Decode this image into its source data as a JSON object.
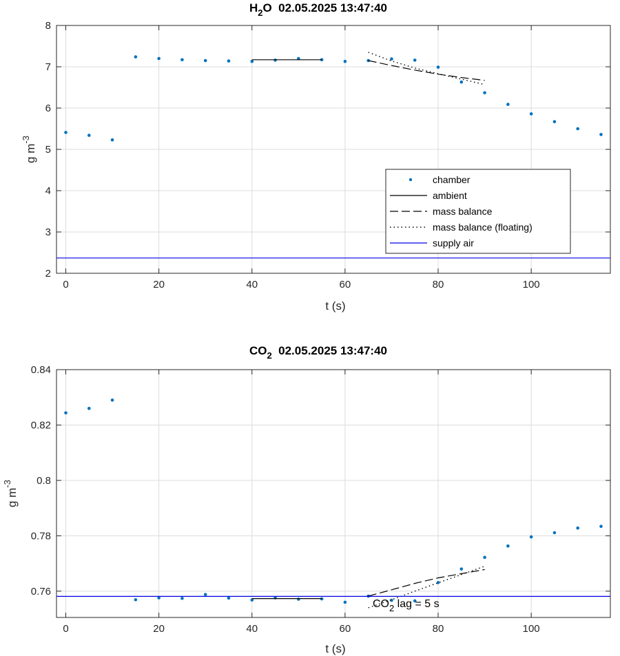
{
  "colors": {
    "chamber": "#0072BD",
    "ambient": "#000000",
    "mass_balance": "#000000",
    "mass_balance_floating": "#000000",
    "supply_air": "#0000E6",
    "grid": "#dcdcdc"
  },
  "chart_data": [
    {
      "type": "scatter",
      "title_main": "H",
      "title_sub": "2",
      "title_rest": "O  02.05.2025 13:47:40",
      "xlabel": "t (s)",
      "ylabel_main": "g m",
      "ylabel_sup": "-3",
      "xlim": [
        -2,
        117
      ],
      "ylim": [
        2,
        8
      ],
      "xticks": [
        0,
        20,
        40,
        60,
        80,
        100
      ],
      "xtick_labels": [
        "0",
        "20",
        "40",
        "60",
        "80",
        "100"
      ],
      "yticks": [
        2,
        3,
        4,
        5,
        6,
        7,
        8
      ],
      "ytick_labels": [
        "2",
        "3",
        "4",
        "5",
        "6",
        "7",
        "8"
      ],
      "grid": true,
      "legend_position": "lower-right",
      "legend": [
        "chamber",
        "ambient",
        "mass balance",
        "mass balance (floating)",
        "supply air"
      ],
      "series": [
        {
          "name": "chamber",
          "style": "dots",
          "x": [
            0,
            5,
            10,
            15,
            20,
            25,
            30,
            35,
            40,
            45,
            50,
            55,
            60,
            65,
            70,
            75,
            80,
            85,
            90,
            95,
            100,
            105,
            110,
            115
          ],
          "y": [
            5.41,
            5.34,
            5.23,
            7.24,
            7.2,
            7.17,
            7.15,
            7.14,
            7.13,
            7.16,
            7.2,
            7.17,
            7.13,
            7.15,
            7.19,
            7.16,
            6.99,
            6.63,
            6.37,
            6.09,
            5.86,
            5.67,
            5.5,
            5.36
          ]
        },
        {
          "name": "ambient",
          "style": "solid",
          "x": [
            40,
            55
          ],
          "y": [
            7.17,
            7.17
          ]
        },
        {
          "name": "mass balance",
          "style": "dashed",
          "x": [
            65,
            70,
            75,
            80,
            85,
            90
          ],
          "y": [
            7.15,
            7.03,
            6.92,
            6.82,
            6.74,
            6.67
          ]
        },
        {
          "name": "mass balance (floating)",
          "style": "dotted",
          "x": [
            65,
            70,
            75,
            80,
            85,
            90
          ],
          "y": [
            7.35,
            7.14,
            6.97,
            6.83,
            6.7,
            6.57
          ]
        },
        {
          "name": "supply air",
          "style": "solid-blue",
          "x": [
            -2,
            117
          ],
          "y": [
            2.37,
            2.37
          ]
        }
      ]
    },
    {
      "type": "scatter",
      "title_main": "CO",
      "title_sub": "2",
      "title_rest": "  02.05.2025 13:47:40",
      "xlabel": "t (s)",
      "ylabel_main": "g m",
      "ylabel_sup": "-3",
      "xlim": [
        -2,
        117
      ],
      "ylim": [
        0.7505,
        0.84
      ],
      "xticks": [
        0,
        20,
        40,
        60,
        80,
        100
      ],
      "xtick_labels": [
        "0",
        "20",
        "40",
        "60",
        "80",
        "100"
      ],
      "yticks": [
        0.76,
        0.78,
        0.8,
        0.82,
        0.84
      ],
      "ytick_labels": [
        "0.76",
        "0.78",
        "0.8",
        "0.82",
        "0.84"
      ],
      "grid": true,
      "annotation": {
        "main": "CO",
        "sub": "2",
        "rest": " lag = 5 s"
      },
      "series": [
        {
          "name": "chamber",
          "style": "dots",
          "x": [
            0,
            5,
            10,
            15,
            20,
            25,
            30,
            35,
            40,
            45,
            50,
            55,
            60,
            65,
            70,
            75,
            80,
            85,
            90,
            95,
            100,
            105,
            110,
            115
          ],
          "y": [
            0.8244,
            0.826,
            0.829,
            0.7569,
            0.7576,
            0.7574,
            0.7588,
            0.7575,
            0.7568,
            0.7576,
            0.7571,
            0.7572,
            0.756,
            0.7582,
            0.7567,
            0.7565,
            0.7631,
            0.768,
            0.7722,
            0.7763,
            0.7796,
            0.7811,
            0.7828,
            0.7834
          ]
        },
        {
          "name": "ambient",
          "style": "solid",
          "x": [
            40,
            55
          ],
          "y": [
            0.7573,
            0.7573
          ]
        },
        {
          "name": "mass balance",
          "style": "dashed",
          "x": [
            65,
            70,
            75,
            80,
            85,
            90
          ],
          "y": [
            0.7582,
            0.7605,
            0.7628,
            0.7648,
            0.7663,
            0.7678
          ]
        },
        {
          "name": "mass balance (floating)",
          "style": "dotted",
          "x": [
            65,
            70,
            75,
            80,
            85,
            90
          ],
          "y": [
            0.754,
            0.7569,
            0.76,
            0.763,
            0.766,
            0.769
          ]
        },
        {
          "name": "supply air",
          "style": "solid-blue",
          "x": [
            -2,
            117
          ],
          "y": [
            0.7581,
            0.7581
          ]
        }
      ]
    }
  ]
}
